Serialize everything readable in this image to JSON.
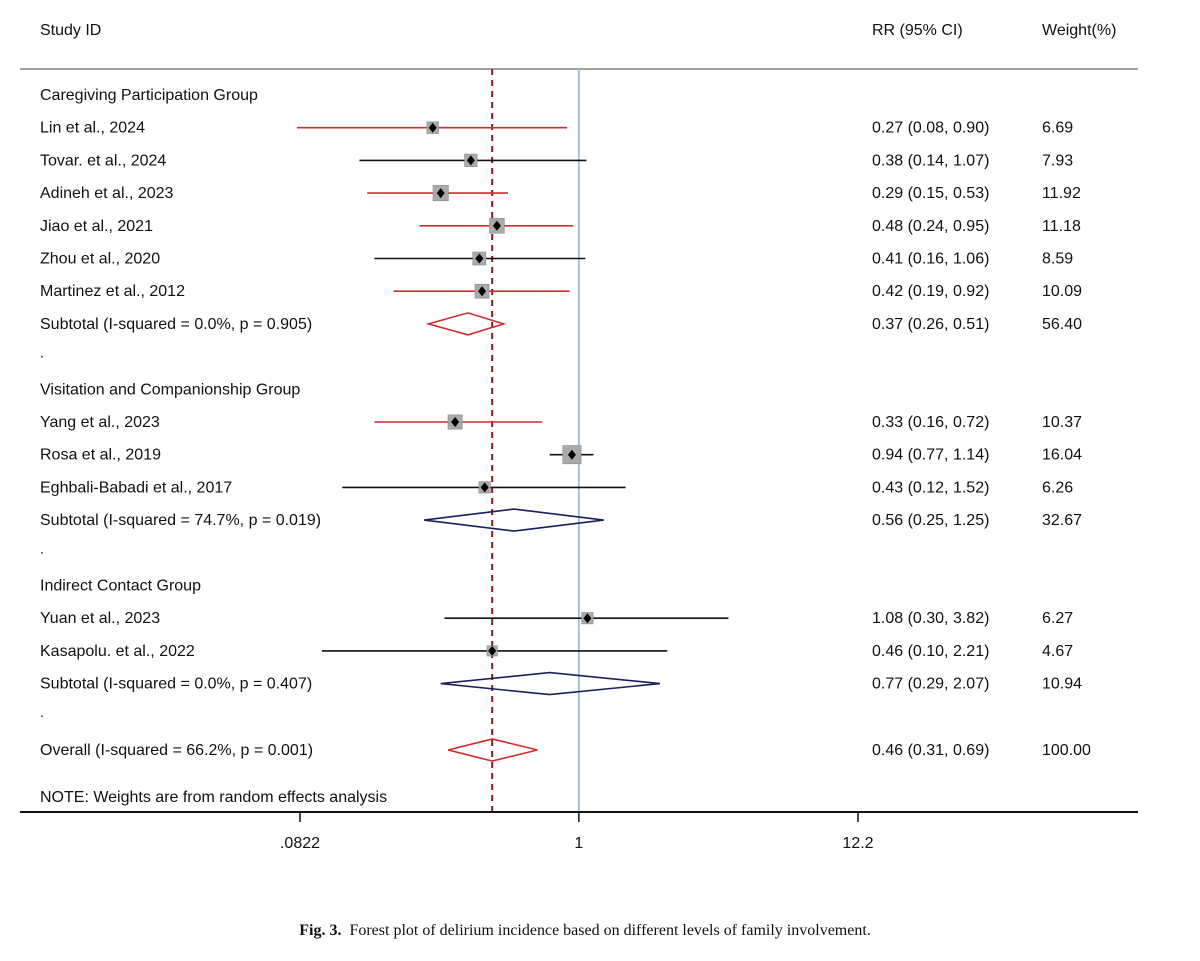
{
  "header": {
    "study_col": "Study ID",
    "rr_col": "RR (95% CI)",
    "weight_col": "Weight(%)"
  },
  "note": "NOTE: Weights are from random effects analysis",
  "caption": {
    "label": "Fig. 3.",
    "text": "Forest plot of delirium incidence based on different levels of family involvement."
  },
  "chart_data": {
    "type": "forest",
    "scale": "log",
    "xlim": [
      0.0822,
      12.2
    ],
    "x_ticks": [
      {
        "value": 0.0822,
        "label": ".0822"
      },
      {
        "value": 1,
        "label": "1"
      },
      {
        "value": 12.2,
        "label": "12.2"
      }
    ],
    "null_line": 1,
    "overall_line": 0.46,
    "colors": {
      "red": "#d42a2a",
      "black": "#111111",
      "navy": "#1b1f5e",
      "ref": "#8fb8d6",
      "dash": "#8b1a1a",
      "box": "#aaaaaa"
    },
    "groups": [
      {
        "title": "Caregiving Participation Group",
        "studies": [
          {
            "name": "Lin et al., 2024",
            "rr": 0.27,
            "lo": 0.08,
            "hi": 0.9,
            "text": "0.27 (0.08, 0.90)",
            "weight": "6.69",
            "color": "red"
          },
          {
            "name": "Tovar. et al., 2024",
            "rr": 0.38,
            "lo": 0.14,
            "hi": 1.07,
            "text": "0.38 (0.14, 1.07)",
            "weight": "7.93",
            "color": "black"
          },
          {
            "name": "Adineh et al., 2023",
            "rr": 0.29,
            "lo": 0.15,
            "hi": 0.53,
            "text": "0.29 (0.15, 0.53)",
            "weight": "11.92",
            "color": "red"
          },
          {
            "name": "Jiao et al., 2021",
            "rr": 0.48,
            "lo": 0.24,
            "hi": 0.95,
            "text": "0.48 (0.24, 0.95)",
            "weight": "11.18",
            "color": "red"
          },
          {
            "name": "Zhou et al., 2020",
            "rr": 0.41,
            "lo": 0.16,
            "hi": 1.06,
            "text": "0.41 (0.16, 1.06)",
            "weight": "8.59",
            "color": "black"
          },
          {
            "name": "Martinez et al., 2012",
            "rr": 0.42,
            "lo": 0.19,
            "hi": 0.92,
            "text": "0.42 (0.19, 0.92)",
            "weight": "10.09",
            "color": "red"
          }
        ],
        "subtotal": {
          "label": "Subtotal  (I-squared = 0.0%, p = 0.905)",
          "rr": 0.37,
          "lo": 0.26,
          "hi": 0.51,
          "text": "0.37 (0.26, 0.51)",
          "weight": "56.40",
          "color": "red"
        }
      },
      {
        "title": "Visitation and Companionship Group",
        "studies": [
          {
            "name": "Yang et al., 2023",
            "rr": 0.33,
            "lo": 0.16,
            "hi": 0.72,
            "text": "0.33 (0.16, 0.72)",
            "weight": "10.37",
            "color": "red"
          },
          {
            "name": "Rosa et al., 2019",
            "rr": 0.94,
            "lo": 0.77,
            "hi": 1.14,
            "text": "0.94 (0.77, 1.14)",
            "weight": "16.04",
            "color": "black"
          },
          {
            "name": "Eghbali-Babadi et al., 2017",
            "rr": 0.43,
            "lo": 0.12,
            "hi": 1.52,
            "text": "0.43 (0.12, 1.52)",
            "weight": "6.26",
            "color": "black"
          }
        ],
        "subtotal": {
          "label": "Subtotal  (I-squared = 74.7%, p = 0.019)",
          "rr": 0.56,
          "lo": 0.25,
          "hi": 1.25,
          "text": "0.56 (0.25, 1.25)",
          "weight": "32.67",
          "color": "navy"
        }
      },
      {
        "title": "Indirect Contact Group",
        "studies": [
          {
            "name": "Yuan et al., 2023",
            "rr": 1.08,
            "lo": 0.3,
            "hi": 3.82,
            "text": "1.08 (0.30, 3.82)",
            "weight": "6.27",
            "color": "black"
          },
          {
            "name": "Kasapolu. et al., 2022",
            "rr": 0.46,
            "lo": 0.1,
            "hi": 2.21,
            "text": "0.46 (0.10, 2.21)",
            "weight": "4.67",
            "color": "black"
          }
        ],
        "subtotal": {
          "label": "Subtotal  (I-squared = 0.0%, p = 0.407)",
          "rr": 0.77,
          "lo": 0.29,
          "hi": 2.07,
          "text": "0.77 (0.29, 2.07)",
          "weight": "10.94",
          "color": "navy"
        }
      }
    ],
    "overall": {
      "label": "Overall  (I-squared = 66.2%, p = 0.001)",
      "rr": 0.46,
      "lo": 0.31,
      "hi": 0.69,
      "text": "0.46 (0.31, 0.69)",
      "weight": "100.00",
      "color": "red"
    }
  }
}
